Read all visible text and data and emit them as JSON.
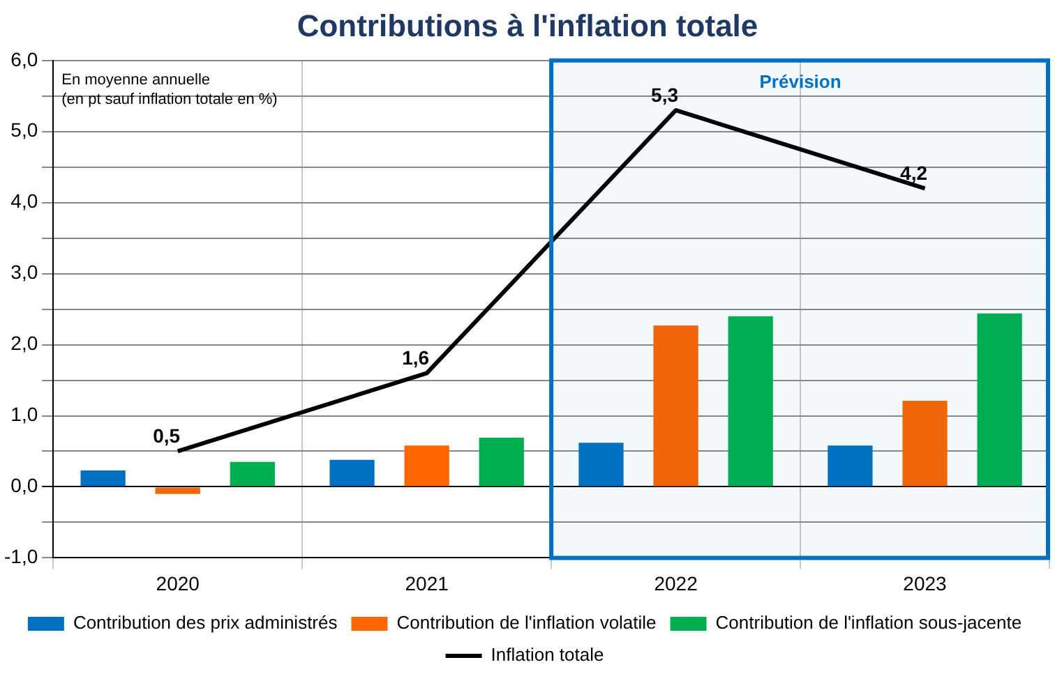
{
  "chart_data": {
    "type": "bar",
    "title": "Contributions à l'inflation totale",
    "categories": [
      "2020",
      "2021",
      "2022",
      "2023"
    ],
    "series": [
      {
        "name": "Contribution des prix administrés",
        "color": "#0070c0",
        "values": [
          0.23,
          0.38,
          0.62,
          0.58
        ]
      },
      {
        "name": "Contribution de l'inflation volatile",
        "color": "#ff6600",
        "values": [
          -0.1,
          0.58,
          2.27,
          1.21
        ]
      },
      {
        "name": "Contribution de l'inflation sous-jacente",
        "color": "#00b050",
        "values": [
          0.35,
          0.69,
          2.4,
          2.44
        ]
      },
      {
        "name": "Inflation totale",
        "type": "line",
        "color": "#000000",
        "values": [
          0.5,
          1.6,
          5.3,
          4.2
        ],
        "value_labels": [
          "0,5",
          "1,6",
          "5,3",
          "4,2"
        ]
      }
    ],
    "ylim": [
      -1,
      6
    ],
    "yticks": [
      {
        "value": -1,
        "label": "-1,0"
      },
      {
        "value": -0.5,
        "label": null
      },
      {
        "value": 0,
        "label": "0,0"
      },
      {
        "value": 0.5,
        "label": null
      },
      {
        "value": 1,
        "label": "1,0"
      },
      {
        "value": 1.5,
        "label": null
      },
      {
        "value": 2,
        "label": "2,0"
      },
      {
        "value": 2.5,
        "label": null
      },
      {
        "value": 3,
        "label": "3,0"
      },
      {
        "value": 3.5,
        "label": null
      },
      {
        "value": 4,
        "label": "4,0"
      },
      {
        "value": 4.5,
        "label": null
      },
      {
        "value": 5,
        "label": "5,0"
      },
      {
        "value": 5.5,
        "label": null
      },
      {
        "value": 6,
        "label": "6,0"
      }
    ],
    "grid": true,
    "legend": "bottom",
    "marker": "none",
    "line_style": "solid",
    "bands": [
      {
        "axis": "x",
        "from": "2022",
        "to": "2023",
        "label": "Prévision",
        "color": "#0070c0"
      }
    ],
    "annotations": [
      "En moyenne annuelle",
      "(en pt sauf inflation totale en %)"
    ]
  }
}
